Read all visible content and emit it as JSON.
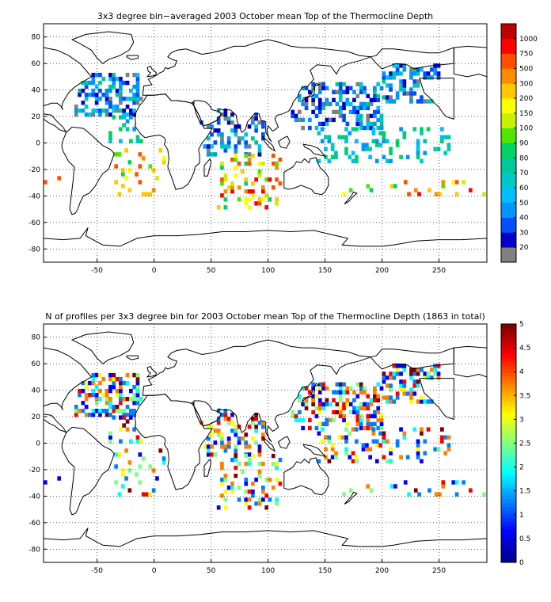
{
  "panels": [
    {
      "id": "mean-depth",
      "title": "3x3 degree bin−averaged 2003 October mean Top of the Thermocline Depth",
      "xticks": [
        "-50",
        "0",
        "50",
        "100",
        "150",
        "200",
        "250"
      ],
      "yticks": [
        "80",
        "60",
        "40",
        "20",
        "0",
        "-20",
        "-40",
        "-60",
        "-80"
      ],
      "colorbar": {
        "labels": [
          "20",
          "30",
          "40",
          "50",
          "60",
          "70",
          "80",
          "90",
          "100",
          "150",
          "200",
          "300",
          "500",
          "750",
          "1000"
        ],
        "colors": [
          "#808080",
          "#0000c8",
          "#0050ff",
          "#0096ff",
          "#00beff",
          "#00c8c8",
          "#00c896",
          "#00d264",
          "#50e600",
          "#c8f000",
          "#ffff00",
          "#ffc800",
          "#ff8c00",
          "#ff5000",
          "#ff0000",
          "#c00000"
        ]
      }
    },
    {
      "id": "profile-count",
      "title": "N of profiles per 3x3 degree bin for 2003 October mean Top of the Thermocline Depth  (1863 in total)",
      "xticks": [
        "-50",
        "0",
        "50",
        "100",
        "150",
        "200",
        "250"
      ],
      "yticks": [
        "80",
        "60",
        "40",
        "20",
        "0",
        "-20",
        "-40",
        "-60",
        "-80"
      ],
      "colorbar": {
        "labels": [
          "0",
          "0.5",
          "1",
          "1.5",
          "2",
          "2.5",
          "3",
          "3.5",
          "4",
          "4.5",
          "5"
        ],
        "stops": [
          "#00008f",
          "#0000ff",
          "#0080ff",
          "#00ffff",
          "#80ff80",
          "#ffff00",
          "#ff8000",
          "#ff0000",
          "#800000"
        ]
      }
    }
  ],
  "map": {
    "lon_range": [
      -97,
      292
    ],
    "lat_range": [
      -90,
      90
    ],
    "grid": true
  }
}
